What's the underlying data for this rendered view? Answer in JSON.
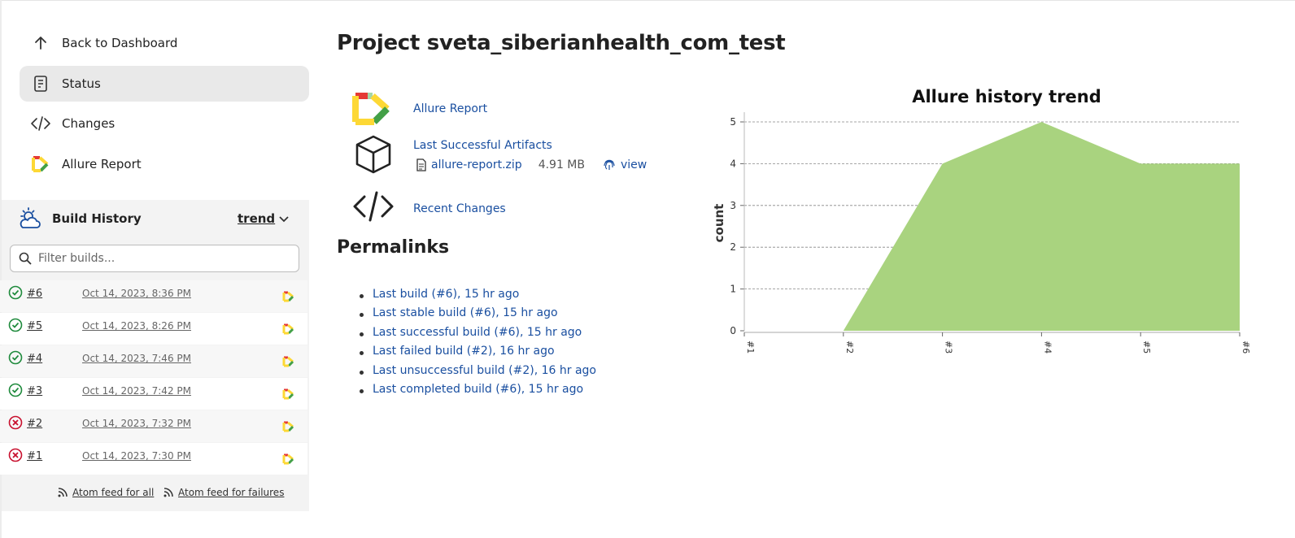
{
  "sidebar": {
    "nav": [
      {
        "label": "Back to Dashboard",
        "icon": "arrow-up-icon"
      },
      {
        "label": "Status",
        "icon": "document-icon",
        "active": true
      },
      {
        "label": "Changes",
        "icon": "code-icon"
      },
      {
        "label": "Allure Report",
        "icon": "allure-logo-icon"
      }
    ],
    "build_history": {
      "title": "Build History",
      "trend_label": "trend",
      "filter_placeholder": "Filter builds...",
      "builds": [
        {
          "number": "#6",
          "date": "Oct 14, 2023, 8:36 PM",
          "status": "success"
        },
        {
          "number": "#5",
          "date": "Oct 14, 2023, 8:26 PM",
          "status": "success"
        },
        {
          "number": "#4",
          "date": "Oct 14, 2023, 7:46 PM",
          "status": "success"
        },
        {
          "number": "#3",
          "date": "Oct 14, 2023, 7:42 PM",
          "status": "success"
        },
        {
          "number": "#2",
          "date": "Oct 14, 2023, 7:32 PM",
          "status": "failed"
        },
        {
          "number": "#1",
          "date": "Oct 14, 2023, 7:30 PM",
          "status": "failed"
        }
      ],
      "feed_all": "Atom feed for all",
      "feed_failures": "Atom feed for failures"
    }
  },
  "main": {
    "title": "Project sveta_siberianhealth_com_test",
    "allure_report_link": "Allure Report",
    "artifacts": {
      "label": "Last Successful Artifacts",
      "file": "allure-report.zip",
      "size": "4.91 MB",
      "view": "view"
    },
    "recent_changes": "Recent Changes",
    "permalinks_title": "Permalinks",
    "permalinks": [
      "Last build (#6), 15 hr ago",
      "Last stable build (#6), 15 hr ago",
      "Last successful build (#6), 15 hr ago",
      "Last failed build (#2), 16 hr ago",
      "Last unsuccessful build (#2), 16 hr ago",
      "Last completed build (#6), 15 hr ago"
    ]
  },
  "colors": {
    "link": "#1a4fa0",
    "success": "#1e8a3c",
    "failed": "#c8102e",
    "trend_fill": "#a9d37f"
  },
  "chart_data": {
    "type": "area",
    "title": "Allure history trend",
    "ylabel": "count",
    "xlabel": "",
    "categories": [
      "#1",
      "#2",
      "#3",
      "#4",
      "#5",
      "#6"
    ],
    "series": [
      {
        "values": [
          null,
          0,
          4,
          5,
          4,
          4
        ]
      }
    ],
    "ylim": [
      0,
      5
    ],
    "yticks": [
      0,
      1,
      2,
      3,
      4,
      5
    ],
    "grid": true
  }
}
